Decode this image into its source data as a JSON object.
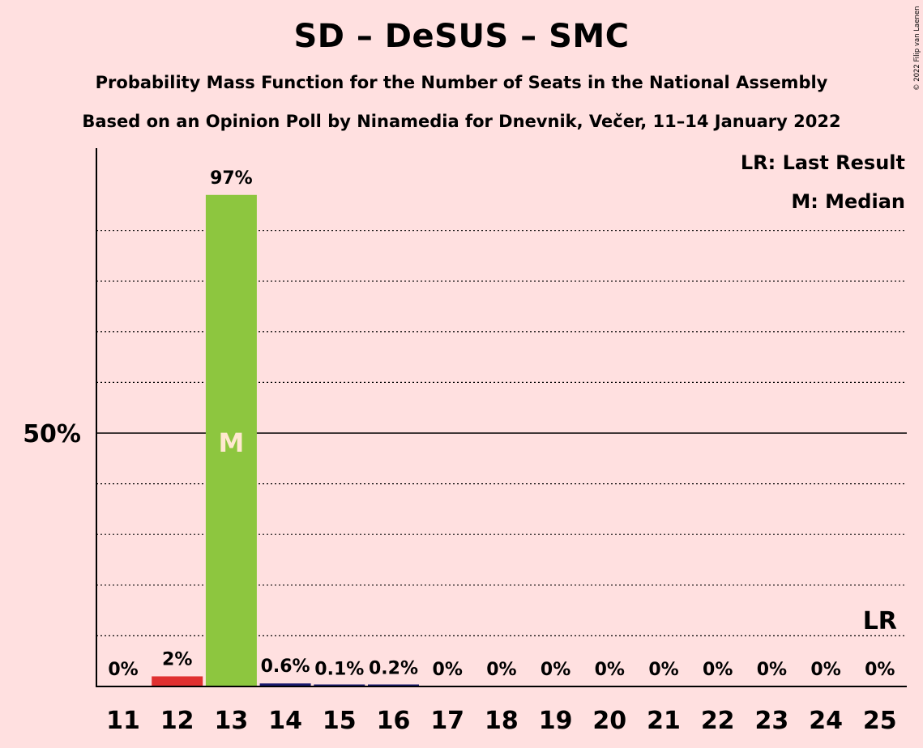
{
  "header": {
    "title": "SD – DeSUS – SMC",
    "subtitle1": "Probability Mass Function for the Number of Seats in the National Assembly",
    "subtitle2": "Based on an Opinion Poll by Ninamedia for Dnevnik, Večer, 11–14 January 2022",
    "copyright": "© 2022 Filip van Laenen"
  },
  "legend": {
    "lr": "LR: Last Result",
    "median": "M: Median"
  },
  "chart_data": {
    "type": "bar",
    "categories": [
      "11",
      "12",
      "13",
      "14",
      "15",
      "16",
      "17",
      "18",
      "19",
      "20",
      "21",
      "22",
      "23",
      "24",
      "25"
    ],
    "values": [
      0,
      2,
      97,
      0.6,
      0.1,
      0.2,
      0,
      0,
      0,
      0,
      0,
      0,
      0,
      0,
      0
    ],
    "value_labels": [
      "0%",
      "2%",
      "97%",
      "0.6%",
      "0.1%",
      "0.2%",
      "0%",
      "0%",
      "0%",
      "0%",
      "0%",
      "0%",
      "0%",
      "0%",
      "0%"
    ],
    "ylim": [
      0,
      106
    ],
    "yticks": [
      {
        "value": 50,
        "label": "50%"
      }
    ],
    "grid_dotted_every": 10,
    "median_seat": "13",
    "median_marker": "M",
    "last_result_seat": "25",
    "last_result_marker": "LR",
    "colors": {
      "background": "#FFE0E0",
      "median_bar": "#8DC63F",
      "last_result_bar": "#E03030",
      "other_bar": "#1A1A6E",
      "median_text": "#FFE8D0"
    }
  }
}
